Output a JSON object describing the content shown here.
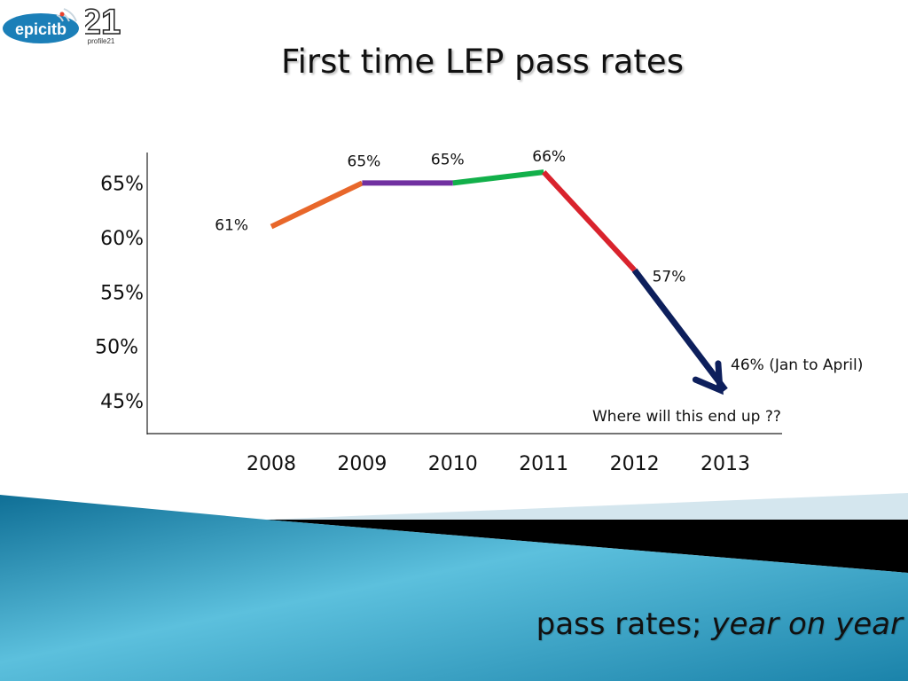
{
  "header": {
    "logo_epic_text": "epicitb",
    "logo_profile_number": "21",
    "logo_profile_text": "profile21",
    "title": "First time LEP pass rates"
  },
  "footer": {
    "title_main": "pass rates; ",
    "title_emphasis": "year on year"
  },
  "colors": {
    "accent_blue": "#1b7fb8",
    "footer_band_light": "#d4e6ee",
    "footer_band_dark": "#000000"
  },
  "chart_data": {
    "type": "line",
    "title": "First time LEP pass rates",
    "xlabel": "",
    "ylabel": "",
    "x": [
      "2008",
      "2009",
      "2010",
      "2011",
      "2012",
      "2013"
    ],
    "ylim": [
      42,
      67.8
    ],
    "yticks": [
      {
        "value": 65,
        "label": "65%"
      },
      {
        "value": 60,
        "label": "60%"
      },
      {
        "value": 55,
        "label": "55%"
      },
      {
        "value": 50,
        "label": "50%"
      },
      {
        "value": 45,
        "label": "45%"
      }
    ],
    "grid": false,
    "points": [
      {
        "x": "2008",
        "y": 61,
        "label": "61%"
      },
      {
        "x": "2009",
        "y": 65,
        "label": "65%"
      },
      {
        "x": "2010",
        "y": 65,
        "label": "65%"
      },
      {
        "x": "2011",
        "y": 66,
        "label": "66%"
      },
      {
        "x": "2012",
        "y": 57,
        "label": "57%"
      },
      {
        "x": "2013",
        "y": 46,
        "label": "46% (Jan to April)"
      }
    ],
    "segment_colors": [
      "#e8672a",
      "#7030a0",
      "#12b04a",
      "#d9232d",
      "#0d1f5c"
    ],
    "annotation": "Where will this end up ??"
  }
}
